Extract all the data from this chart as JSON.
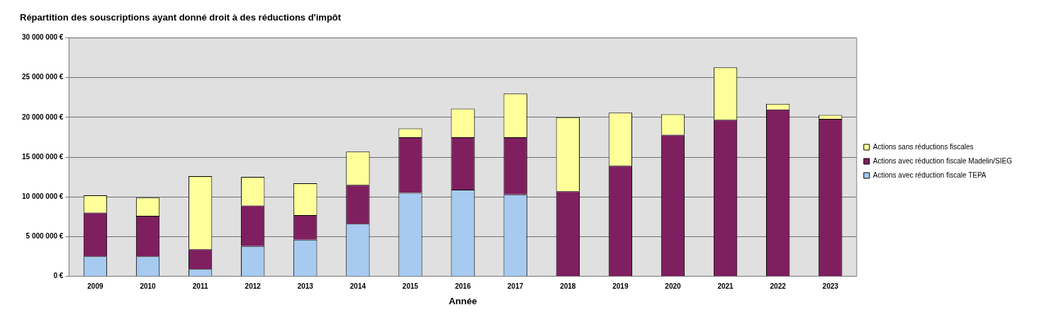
{
  "chart_data": {
    "type": "bar",
    "title": "Répartition des souscriptions ayant donné droit à des réductions d'impôt",
    "xlabel": "Année",
    "stacked": true,
    "legend": "right",
    "grid": "y",
    "categories": [
      "2009",
      "2010",
      "2011",
      "2012",
      "2013",
      "2014",
      "2015",
      "2016",
      "2017",
      "2018",
      "2019",
      "2020",
      "2021",
      "2022",
      "2023"
    ],
    "series": [
      {
        "name": "Actions avec réduction fiscale TEPA",
        "color": "#a6caf0",
        "values": [
          2500000,
          2500000,
          900000,
          3800000,
          4600000,
          6600000,
          10500000,
          10900000,
          10300000,
          null,
          null,
          null,
          null,
          null,
          null
        ]
      },
      {
        "name": "Actions avec réduction fiscale Madelin/SIEG",
        "color": "#7f1f5f",
        "values": [
          5500000,
          5100000,
          2500000,
          5100000,
          3100000,
          4900000,
          7000000,
          6600000,
          7200000,
          10700000,
          13900000,
          17800000,
          19700000,
          21000000,
          19800000
        ]
      },
      {
        "name": "Actions sans réductions fiscales",
        "color": "#ffff99",
        "values": [
          2200000,
          2300000,
          9200000,
          3600000,
          4000000,
          4200000,
          1100000,
          3600000,
          5500000,
          9300000,
          6700000,
          2600000,
          6600000,
          700000,
          500000
        ]
      }
    ],
    "ylim": [
      0,
      30000000
    ],
    "yticks": [
      {
        "value": 0,
        "label": "0 €"
      },
      {
        "value": 5000000,
        "label": "5 000 000 €"
      },
      {
        "value": 10000000,
        "label": "10 000 000 €"
      },
      {
        "value": 15000000,
        "label": "15 000 000 €"
      },
      {
        "value": 20000000,
        "label": "20 000 000 €"
      },
      {
        "value": 25000000,
        "label": "25 000 000 €"
      },
      {
        "value": 30000000,
        "label": "30 000 000 €"
      }
    ]
  }
}
